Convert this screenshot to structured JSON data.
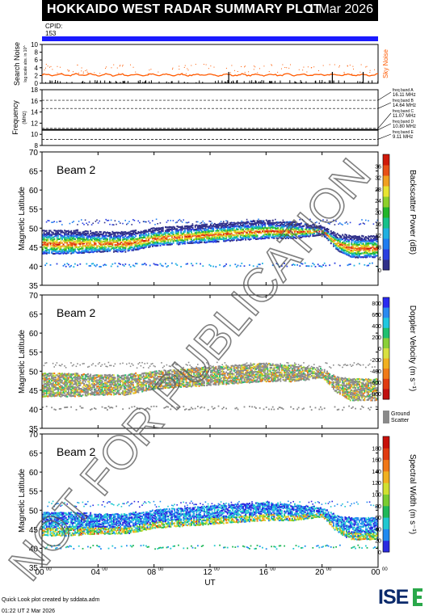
{
  "header": {
    "title": "HOKKAIDO WEST RADAR SUMMARY PLOT",
    "date": "1 Mar 2026"
  },
  "cpid": {
    "label": "CPID:",
    "value": "153"
  },
  "colors": {
    "blue": "#1a1aff",
    "orange": "#ff5a00",
    "header_bg": "#000000"
  },
  "noise_panel": {
    "ylabel": "Search Noise",
    "ylabel_sub": "log scale abs. in 10^",
    "side_label": "Sky Noise",
    "ticks": [
      "0",
      "2",
      "4",
      "6",
      "8",
      "10"
    ],
    "ylim": [
      0,
      10
    ]
  },
  "freq_panel": {
    "ylabel": "Frequency",
    "ylabel_sub": "(MHz)",
    "ticks": [
      "8",
      "10",
      "12",
      "14",
      "16",
      "18"
    ],
    "ylim": [
      8,
      18
    ],
    "bands": [
      {
        "name": "freq band A",
        "value": "16.11 MHz",
        "mhz": 16.11
      },
      {
        "name": "freq band B",
        "value": "14.64 MHz",
        "mhz": 14.64
      },
      {
        "name": "freq band C",
        "value": "11.07 MHz",
        "mhz": 11.07
      },
      {
        "name": "freq band D",
        "value": "10.80 MHz",
        "mhz": 10.8
      },
      {
        "name": "freq band E",
        "value": "9.11 MHz",
        "mhz": 9.11
      }
    ]
  },
  "panels": [
    {
      "beam": "Beam  2",
      "ylabel": "Magnetic Latitude",
      "cbar_label": "Backscatter Power (dB)",
      "cbar_ticks": [
        "0",
        "4",
        "8",
        "12",
        "16",
        "20",
        "24",
        "28",
        "32",
        "36"
      ],
      "cbar": "power"
    },
    {
      "beam": "Beam  2",
      "ylabel": "Magnetic Latitude",
      "cbar_label": "Doppler Velocity (m s⁻¹)",
      "cbar_ticks": [
        "800",
        "600",
        "400",
        "200",
        "0",
        "-200",
        "-400",
        "-600",
        "-800"
      ],
      "cbar": "velocity",
      "ground_label": "Ground",
      "ground_label2": "Scatter"
    },
    {
      "beam": "Beam  2",
      "ylabel": "Magnetic Latitude",
      "cbar_label": "Spectral Width (m s⁻¹)",
      "cbar_ticks": [
        "0",
        "20",
        "40",
        "60",
        "80",
        "100",
        "120",
        "140",
        "160",
        "180"
      ],
      "cbar": "width"
    }
  ],
  "lat_ticks": [
    "35",
    "40",
    "45",
    "50",
    "55",
    "60",
    "65",
    "70"
  ],
  "x_axis": {
    "label": "UT",
    "ticks": [
      "00",
      "04",
      "08",
      "12",
      "16",
      "20",
      "00"
    ],
    "sup": "00"
  },
  "watermark": "NOT FOR PUBLICATION",
  "footer": {
    "line1": "Quick Look plot created by sddata.adm",
    "line2": "01:22 UT  2 Mar 2026"
  },
  "logo": "ISEE",
  "chart_data": {
    "type": "heatmap",
    "title": "HOKKAIDO WEST RADAR SUMMARY PLOT",
    "xlabel": "UT",
    "ylabel": "Magnetic Latitude",
    "xlim_hours": [
      0,
      24
    ],
    "ylim": [
      35,
      70
    ],
    "frequency_bands_mhz": [
      16.11,
      14.64,
      11.07,
      10.8,
      9.11
    ],
    "scatter_lower_edge": {
      "hours": [
        0,
        2,
        4,
        6,
        8,
        10,
        12,
        14,
        16,
        18,
        20,
        21,
        22,
        24
      ],
      "mlat": [
        44,
        44,
        44.5,
        44.5,
        46,
        46.5,
        47,
        47.5,
        48,
        48,
        49,
        45,
        43,
        43
      ]
    },
    "scatter_upper_edge": {
      "hours": [
        0,
        2,
        4,
        6,
        8,
        10,
        12,
        14,
        16,
        18,
        20,
        21,
        22,
        24
      ],
      "mlat": [
        49,
        49,
        48.5,
        48.5,
        49.5,
        50,
        50.5,
        51,
        51.5,
        51,
        50,
        48,
        47.5,
        47.5
      ]
    },
    "ground_scatter_lat": [
      40,
      41
    ],
    "sky_noise_level": 2
  }
}
